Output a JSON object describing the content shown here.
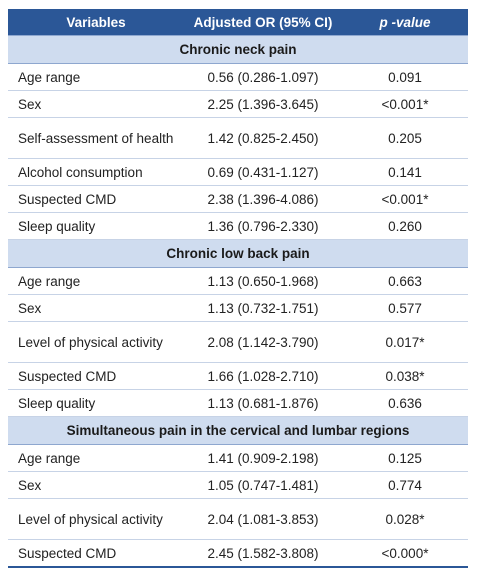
{
  "header": {
    "variables": "Variables",
    "adjusted_or": "Adjusted OR (95% CI)",
    "p_value": "p -value"
  },
  "sections": [
    {
      "title": "Chronic neck pain",
      "rows": [
        {
          "variable": "Age range",
          "or": "0.56 (0.286-1.097)",
          "p": "0.091"
        },
        {
          "variable": "Sex",
          "or": "2.25 (1.396-3.645)",
          "p": "<0.001*"
        },
        {
          "variable": "Self-assessment of health",
          "or": "1.42 (0.825-2.450)",
          "p": "0.205"
        },
        {
          "variable": "Alcohol consumption",
          "or": "0.69 (0.431-1.127)",
          "p": "0.141"
        },
        {
          "variable": "Suspected CMD",
          "or": "2.38 (1.396-4.086)",
          "p": "<0.001*"
        },
        {
          "variable": "Sleep quality",
          "or": "1.36 (0.796-2.330)",
          "p": "0.260"
        }
      ]
    },
    {
      "title": "Chronic low back pain",
      "rows": [
        {
          "variable": "Age range",
          "or": "1.13 (0.650-1.968)",
          "p": "0.663"
        },
        {
          "variable": "Sex",
          "or": "1.13 (0.732-1.751)",
          "p": "0.577"
        },
        {
          "variable": "Level of physical activity",
          "or": "2.08 (1.142-3.790)",
          "p": "0.017*"
        },
        {
          "variable": "Suspected CMD",
          "or": "1.66 (1.028-2.710)",
          "p": "0.038*"
        },
        {
          "variable": "Sleep quality",
          "or": "1.13 (0.681-1.876)",
          "p": "0.636"
        }
      ]
    },
    {
      "title": "Simultaneous pain in the cervical and lumbar regions",
      "rows": [
        {
          "variable": "Age range",
          "or": "1.41 (0.909-2.198)",
          "p": "0.125"
        },
        {
          "variable": "Sex",
          "or": "1.05 (0.747-1.481)",
          "p": "0.774"
        },
        {
          "variable": "Level of physical activity",
          "or": "2.04 (1.081-3.853)",
          "p": "0.028*"
        },
        {
          "variable": "Suspected CMD",
          "or": "2.45 (1.582-3.808)",
          "p": "<0.000*"
        }
      ]
    }
  ]
}
